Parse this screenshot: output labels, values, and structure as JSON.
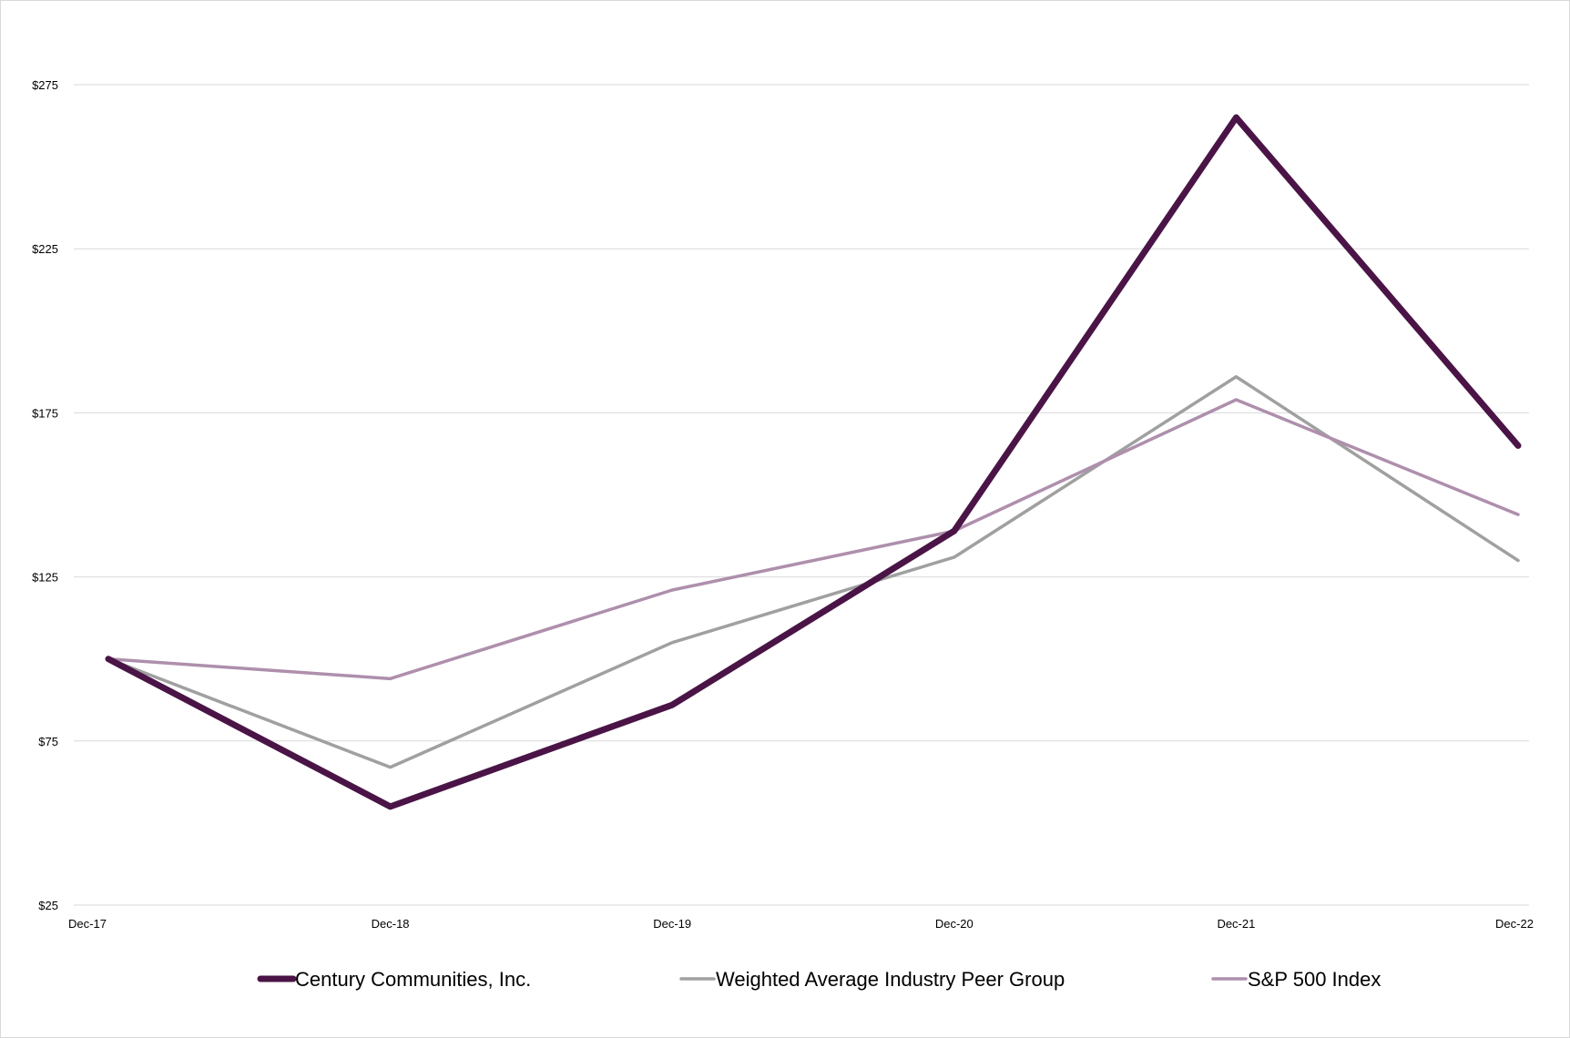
{
  "chart_data": {
    "type": "line",
    "title": "",
    "xlabel": "",
    "ylabel": "",
    "categories": [
      "Dec-17",
      "Dec-18",
      "Dec-19",
      "Dec-20",
      "Dec-21",
      "Dec-22"
    ],
    "ylim": [
      25,
      275
    ],
    "yticks": [
      25,
      75,
      125,
      175,
      225,
      275
    ],
    "ytick_labels": [
      "$25",
      "$75",
      "$125",
      "$175",
      "$225",
      "$275"
    ],
    "grid": "horizontal",
    "legend_position": "bottom",
    "series": [
      {
        "name": "Century Communities, Inc.",
        "color": "#4a1446",
        "values": [
          100,
          55,
          86,
          139,
          265,
          165
        ]
      },
      {
        "name": "Weighted Average Industry Peer Group",
        "color": "#a0a0a0",
        "values": [
          100,
          67,
          105,
          131,
          186,
          130
        ]
      },
      {
        "name": "S&P 500 Index",
        "color": "#ae8fac",
        "values": [
          100,
          94,
          121,
          139,
          179,
          144
        ]
      }
    ]
  }
}
